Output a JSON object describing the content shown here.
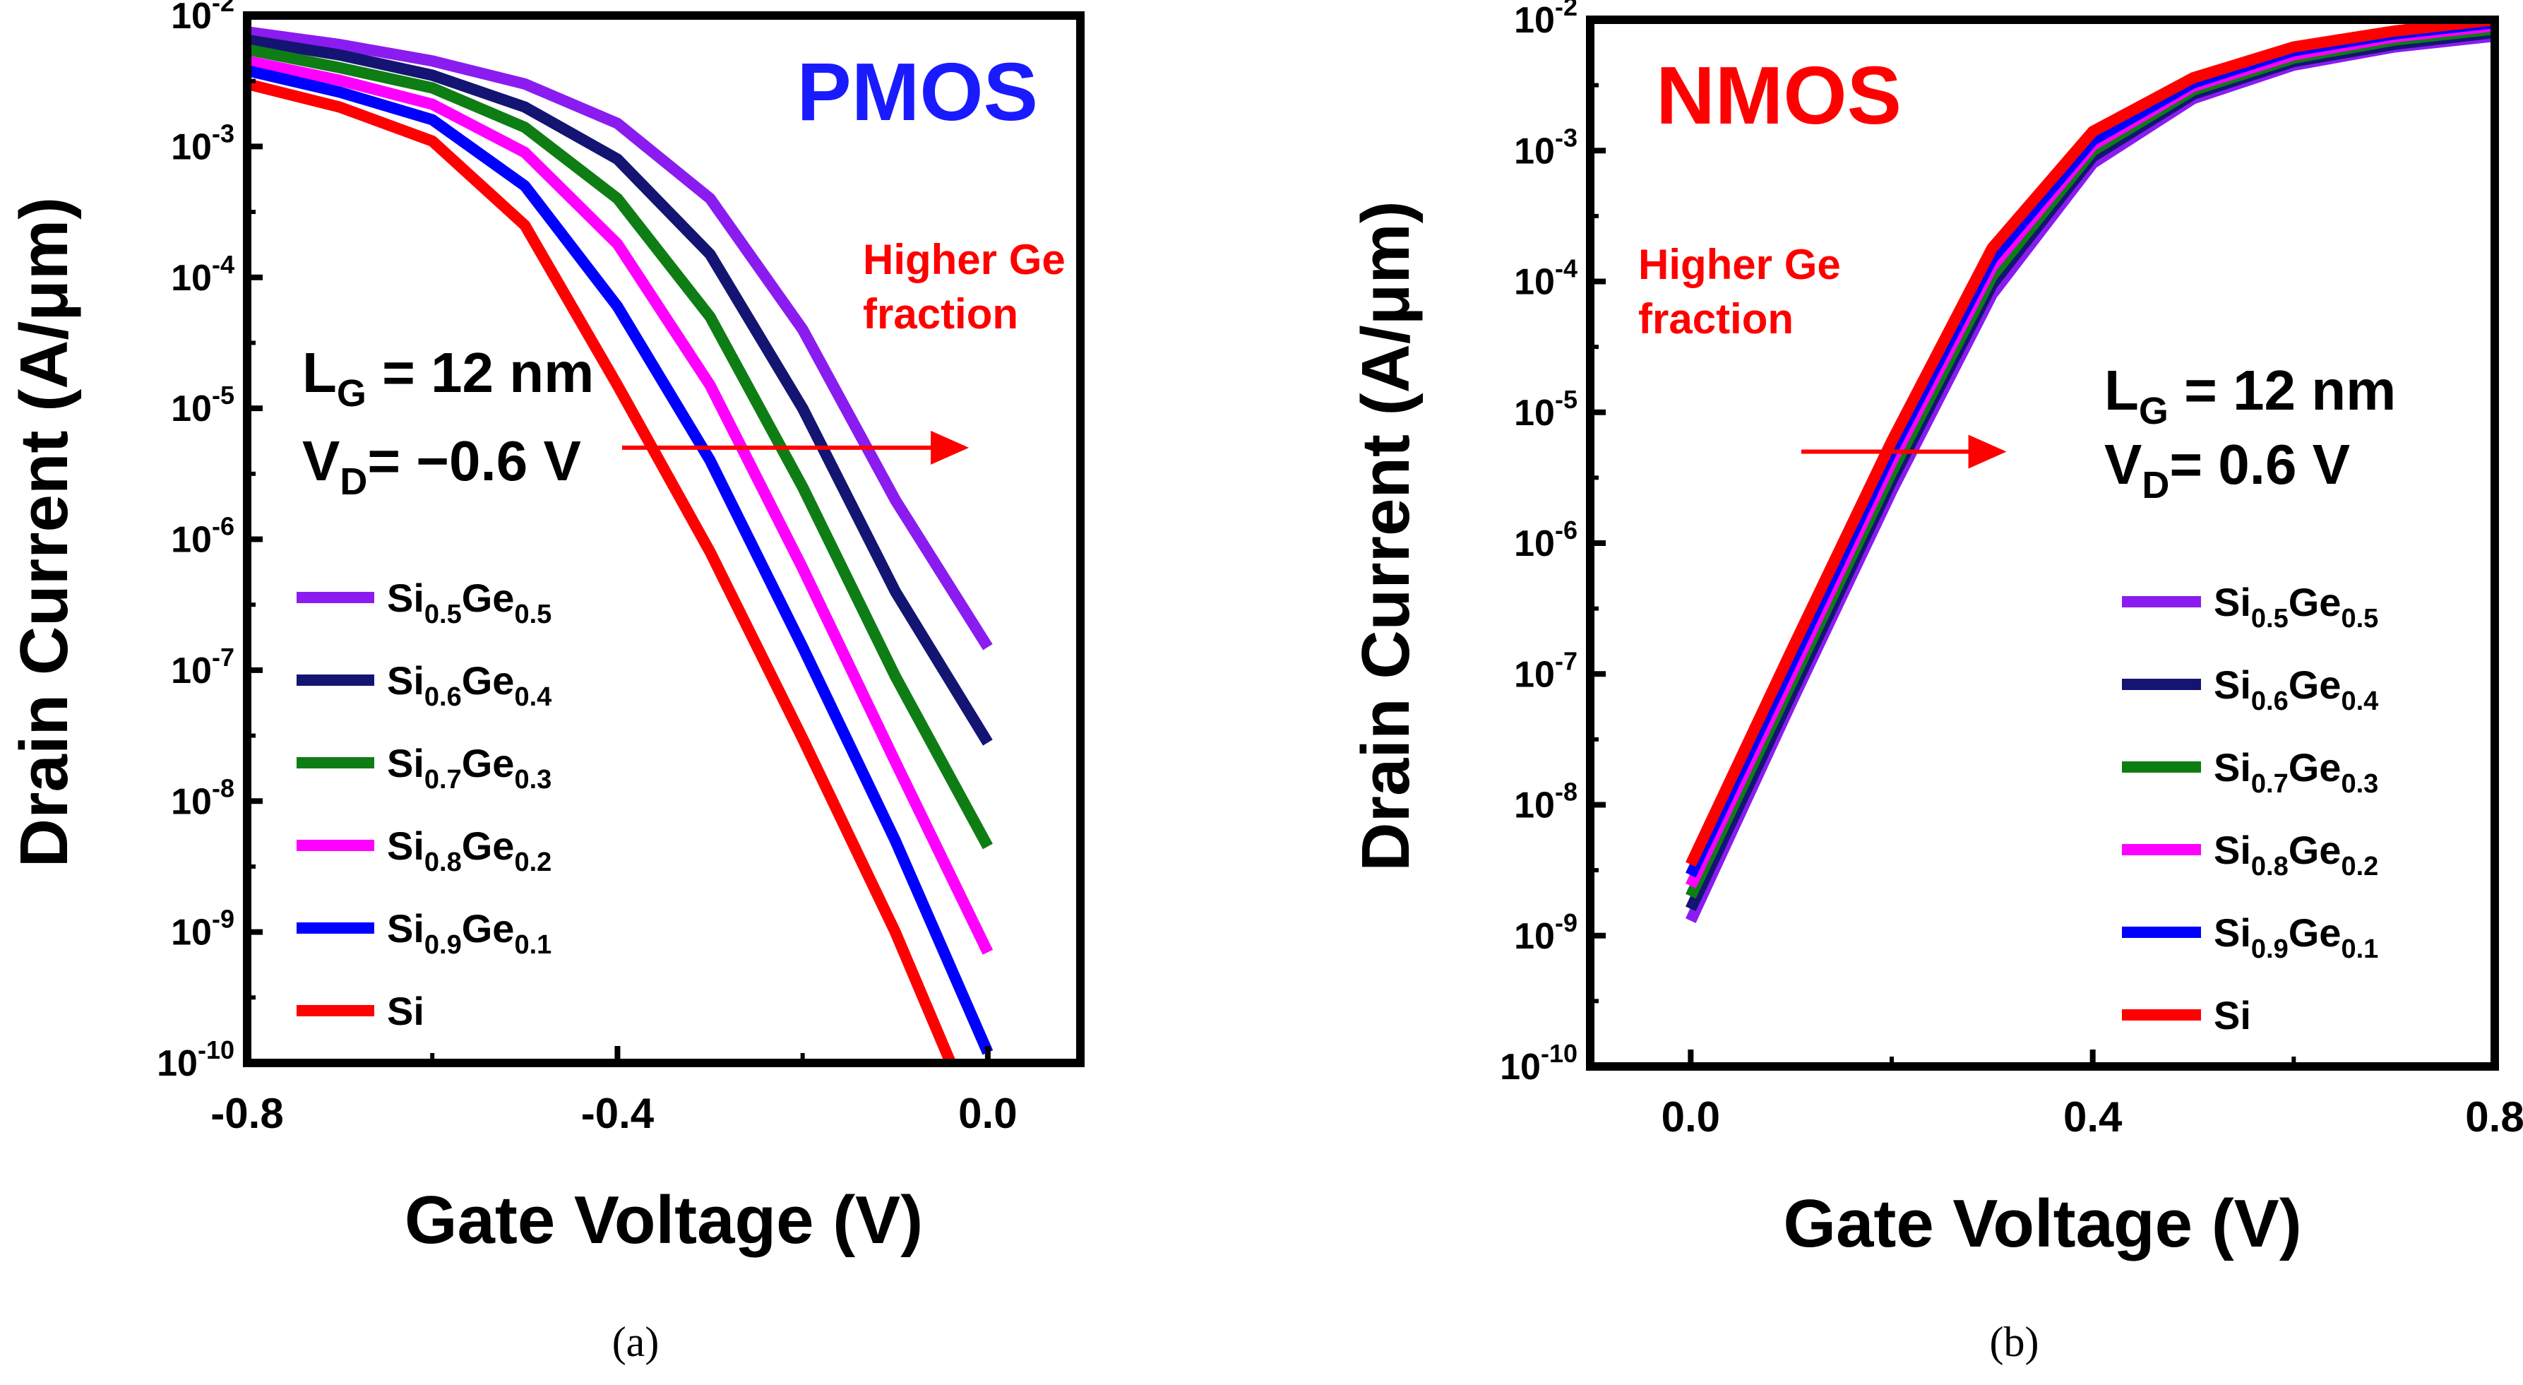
{
  "chart_data": [
    {
      "type": "line",
      "panel_label": "(a)",
      "device": "PMOS",
      "xlabel": "Gate Voltage (V)",
      "ylabel": "Drain Current (A/μm)",
      "x_range": [
        -0.8,
        0.1
      ],
      "x_ticks": [
        -0.8,
        -0.4,
        0.0
      ],
      "x_tick_labels": [
        "-0.8",
        "-0.4",
        "0.0"
      ],
      "y_scale": "log",
      "y_range": [
        1e-10,
        0.01
      ],
      "y_tick_exponents": [
        -2,
        -3,
        -4,
        -5,
        -6,
        -7,
        -8,
        -9,
        -10
      ],
      "y_tick_base": "10",
      "annotation": {
        "line1": "Higher Ge",
        "line2": "fraction"
      },
      "params": {
        "lg_label": "L",
        "lg_sub": "G",
        "lg_value": " = 12 nm",
        "vd_label": "V",
        "vd_sub": "D",
        "vd_value": "= −0.6 V"
      },
      "arrow": {
        "x_from": -0.395,
        "x_to": -0.025,
        "y": 5e-06
      },
      "series": [
        {
          "name": "Si0.5Ge0.5",
          "base": "Si",
          "sub1": "0.5",
          "mid": "Ge",
          "sub2": "0.5",
          "color": "#8b1cf0",
          "x": [
            -0.8,
            -0.7,
            -0.6,
            -0.5,
            -0.4,
            -0.3,
            -0.2,
            -0.1,
            0.0
          ],
          "y": [
            0.0075,
            0.006,
            0.0045,
            0.003,
            0.0015,
            0.0004,
            4e-05,
            2e-06,
            1.5e-07
          ]
        },
        {
          "name": "Si0.6Ge0.4",
          "base": "Si",
          "sub1": "0.6",
          "mid": "Ge",
          "sub2": "0.4",
          "color": "#141473",
          "x": [
            -0.8,
            -0.7,
            -0.6,
            -0.5,
            -0.4,
            -0.3,
            -0.2,
            -0.1,
            0.0
          ],
          "y": [
            0.0065,
            0.005,
            0.0035,
            0.002,
            0.0008,
            0.00015,
            1e-05,
            4e-07,
            2.8e-08
          ]
        },
        {
          "name": "Si0.7Ge0.3",
          "base": "Si",
          "sub1": "0.7",
          "mid": "Ge",
          "sub2": "0.3",
          "color": "#0e7d14",
          "x": [
            -0.8,
            -0.7,
            -0.6,
            -0.5,
            -0.4,
            -0.3,
            -0.2,
            -0.1,
            0.0
          ],
          "y": [
            0.0055,
            0.004,
            0.0028,
            0.0014,
            0.0004,
            5e-05,
            2.5e-06,
            9e-08,
            4.5e-09
          ]
        },
        {
          "name": "Si0.8Ge0.2",
          "base": "Si",
          "sub1": "0.8",
          "mid": "Ge",
          "sub2": "0.2",
          "color": "#ff00ff",
          "x": [
            -0.8,
            -0.7,
            -0.6,
            -0.5,
            -0.4,
            -0.3,
            -0.2,
            -0.1,
            0.0
          ],
          "y": [
            0.0045,
            0.0032,
            0.0021,
            0.0009,
            0.00018,
            1.5e-05,
            6e-07,
            2e-08,
            7e-10
          ]
        },
        {
          "name": "Si0.9Ge0.1",
          "base": "Si",
          "sub1": "0.9",
          "mid": "Ge",
          "sub2": "0.1",
          "color": "#0000ff",
          "x": [
            -0.8,
            -0.7,
            -0.6,
            -0.5,
            -0.4,
            -0.3,
            -0.2,
            -0.1,
            0.0
          ],
          "y": [
            0.0038,
            0.0026,
            0.0016,
            0.0005,
            6e-05,
            4e-06,
            1.5e-07,
            5e-09,
            1.2e-10
          ]
        },
        {
          "name": "Si",
          "base": "Si",
          "sub1": "",
          "mid": "",
          "sub2": "",
          "color": "#ff0000",
          "x": [
            -0.8,
            -0.7,
            -0.6,
            -0.5,
            -0.4,
            -0.3,
            -0.2,
            -0.1,
            -0.04
          ],
          "y": [
            0.003,
            0.002,
            0.0011,
            0.00025,
            1.5e-05,
            8e-07,
            3e-08,
            1e-09,
            1e-10
          ]
        }
      ]
    },
    {
      "type": "line",
      "panel_label": "(b)",
      "device": "NMOS",
      "xlabel": "Gate Voltage (V)",
      "ylabel": "Drain Current (A/μm)",
      "x_range": [
        -0.1,
        0.8
      ],
      "x_ticks": [
        0.0,
        0.4,
        0.8
      ],
      "x_tick_labels": [
        "0.0",
        "0.4",
        "0.8"
      ],
      "y_scale": "log",
      "y_range": [
        1e-10,
        0.01
      ],
      "y_tick_exponents": [
        -2,
        -3,
        -4,
        -5,
        -6,
        -7,
        -8,
        -9,
        -10
      ],
      "y_tick_base": "10",
      "annotation": {
        "line1": "Higher Ge",
        "line2": "fraction"
      },
      "params": {
        "lg_label": "L",
        "lg_sub": "G",
        "lg_value": " = 12 nm",
        "vd_label": "V",
        "vd_sub": "D",
        "vd_value": "= 0.6 V"
      },
      "arrow": {
        "x_from": 0.11,
        "x_to": 0.31,
        "y": 5e-06
      },
      "series": [
        {
          "name": "Si0.5Ge0.5",
          "base": "Si",
          "sub1": "0.5",
          "mid": "Ge",
          "sub2": "0.5",
          "color": "#8b1cf0",
          "x": [
            0.0,
            0.1,
            0.2,
            0.3,
            0.4,
            0.5,
            0.6,
            0.7,
            0.8
          ],
          "y": [
            1.3e-09,
            6e-08,
            2.5e-06,
            8e-05,
            0.0008,
            0.0025,
            0.0045,
            0.0062,
            0.0075
          ]
        },
        {
          "name": "Si0.6Ge0.4",
          "base": "Si",
          "sub1": "0.6",
          "mid": "Ge",
          "sub2": "0.4",
          "color": "#141473",
          "x": [
            0.0,
            0.1,
            0.2,
            0.3,
            0.4,
            0.5,
            0.6,
            0.7,
            0.8
          ],
          "y": [
            1.6e-09,
            7e-08,
            3e-06,
            9.5e-05,
            0.0009,
            0.0027,
            0.0048,
            0.0065,
            0.008
          ]
        },
        {
          "name": "Si0.7Ge0.3",
          "base": "Si",
          "sub1": "0.7",
          "mid": "Ge",
          "sub2": "0.3",
          "color": "#0e7d14",
          "x": [
            0.0,
            0.1,
            0.2,
            0.3,
            0.4,
            0.5,
            0.6,
            0.7,
            0.8
          ],
          "y": [
            2e-09,
            8.5e-08,
            3.5e-06,
            0.00011,
            0.001,
            0.0029,
            0.0051,
            0.007,
            0.0085
          ]
        },
        {
          "name": "Si0.8Ge0.2",
          "base": "Si",
          "sub1": "0.8",
          "mid": "Ge",
          "sub2": "0.2",
          "color": "#ff00ff",
          "x": [
            0.0,
            0.1,
            0.2,
            0.3,
            0.4,
            0.5,
            0.6,
            0.7,
            0.8
          ],
          "y": [
            2.4e-09,
            1e-07,
            4.2e-06,
            0.00013,
            0.0011,
            0.0031,
            0.0054,
            0.0074,
            0.009
          ]
        },
        {
          "name": "Si0.9Ge0.1",
          "base": "Si",
          "sub1": "0.9",
          "mid": "Ge",
          "sub2": "0.1",
          "color": "#0000ff",
          "x": [
            0.0,
            0.1,
            0.2,
            0.3,
            0.4,
            0.5,
            0.6,
            0.7,
            0.8
          ],
          "y": [
            2.9e-09,
            1.2e-07,
            5e-06,
            0.00015,
            0.0012,
            0.0033,
            0.0058,
            0.0078,
            0.0095
          ]
        },
        {
          "name": "Si",
          "base": "Si",
          "sub1": "",
          "mid": "",
          "sub2": "",
          "color": "#ff0000",
          "x": [
            0.0,
            0.1,
            0.2,
            0.3,
            0.4,
            0.5,
            0.6,
            0.7,
            0.8
          ],
          "y": [
            3.5e-09,
            1.5e-07,
            6e-06,
            0.00018,
            0.0014,
            0.0036,
            0.0062,
            0.0082,
            0.01
          ]
        }
      ]
    }
  ],
  "colors": {
    "pmos_title": "#1a1aff",
    "nmos_title": "#ff0000",
    "annotation": "#ff0000",
    "axes": "#000000"
  }
}
